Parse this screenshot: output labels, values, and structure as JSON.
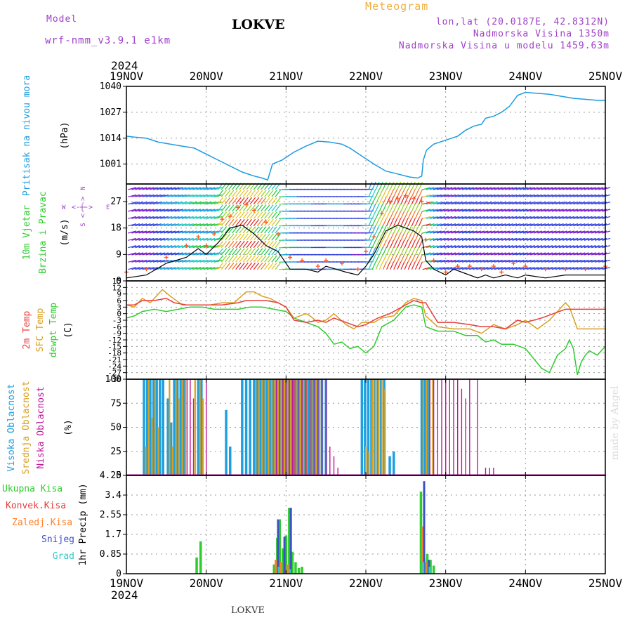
{
  "header": {
    "model_label": "Model",
    "model_name": "wrf-nmm_v3.9.1 e1km",
    "station": "LOKVE",
    "title": "Meteogram",
    "coords": "lon,lat (20.0187E, 42.8312N)",
    "altitude": "Nadmorska Visina 1350m",
    "model_altitude": "Nadmorska Visina u modelu 1459.63m",
    "footer_station": "LOKVE",
    "credit": "made by Angel"
  },
  "colors": {
    "pressure": "#1e9be0",
    "wind_speed_mean": "#000000",
    "wind_gust": "#ff5a1e",
    "temp_2m": "#e83c3c",
    "temp_sfc": "#d9a020",
    "dewpoint": "#2ecc2e",
    "cloud_high": "#1ea0e0",
    "cloud_mid": "#d9a020",
    "cloud_low": "#c0179a",
    "precip_total": "#2ecc2e",
    "precip_conv": "#e83c3c",
    "precip_freezing": "#ff7f27",
    "snow": "#3c50c8",
    "hail": "#2ec8c8"
  },
  "chart_data": [
    {
      "type": "line",
      "panel": "pressure",
      "ylabel_lines": [
        "Pritisak na nivou mora",
        "(hPa)"
      ],
      "xlabel_top": [
        "2024",
        "19NOV",
        "20NOV",
        "21NOV",
        "22NOV",
        "23NOV",
        "24NOV",
        "25NOV"
      ],
      "x_unit": "days since 19NOV 00h",
      "ylim": [
        991,
        1040
      ],
      "yticks": [
        1001,
        1014,
        1027,
        1040
      ],
      "grid": true,
      "series": [
        {
          "name": "Pritisak na nivou mora",
          "x": [
            0,
            0.1,
            0.25,
            0.4,
            0.55,
            0.7,
            0.85,
            1.0,
            1.15,
            1.3,
            1.45,
            1.6,
            1.7,
            1.77,
            1.83,
            1.95,
            2.1,
            2.25,
            2.4,
            2.55,
            2.7,
            2.8,
            2.95,
            3.1,
            3.25,
            3.4,
            3.55,
            3.65,
            3.7,
            3.72,
            3.76,
            3.85,
            4.0,
            4.15,
            4.25,
            4.35,
            4.45,
            4.5,
            4.6,
            4.7,
            4.8,
            4.9,
            5.0,
            5.3,
            5.6,
            5.9,
            6.0
          ],
          "values": [
            1015,
            1014.5,
            1014,
            1012,
            1011,
            1010,
            1009,
            1006,
            1003,
            1000,
            997,
            995,
            994,
            993,
            1001,
            1003,
            1007,
            1010,
            1012.5,
            1012,
            1011,
            1009,
            1005,
            1001,
            997.5,
            996,
            994.5,
            994,
            995,
            1003,
            1008,
            1011,
            1013,
            1015,
            1018,
            1020,
            1021,
            1024,
            1025,
            1027,
            1030,
            1035.5,
            1037,
            1036,
            1034,
            1033,
            1033
          ]
        }
      ]
    },
    {
      "type": "line",
      "panel": "wind",
      "ylabel_lines": [
        "10m Vjetar",
        "Brzina i Pravac",
        "(m/s)"
      ],
      "compass": [
        "W",
        "E",
        "S",
        "N"
      ],
      "ylim": [
        0,
        33
      ],
      "yticks": [
        0,
        9,
        18,
        27
      ],
      "grid": true,
      "series": [
        {
          "name": "Srednja brzina",
          "x": [
            0,
            0.25,
            0.5,
            0.75,
            0.9,
            1.0,
            1.15,
            1.3,
            1.45,
            1.6,
            1.75,
            1.9,
            2.05,
            2.25,
            2.4,
            2.5,
            2.75,
            2.9,
            3.0,
            3.1,
            3.25,
            3.4,
            3.5,
            3.6,
            3.7,
            3.75,
            3.85,
            4.0,
            4.1,
            4.2,
            4.4,
            4.5,
            4.6,
            4.75,
            4.9,
            5.0,
            5.25,
            5.5,
            5.75,
            6.0
          ],
          "values": [
            1,
            2,
            6,
            8,
            11,
            9,
            13,
            18,
            19,
            16,
            12,
            10,
            4,
            4,
            3,
            5,
            3,
            2,
            5,
            9,
            17,
            19,
            18,
            17,
            15,
            7,
            4,
            2,
            4,
            3,
            1,
            2,
            1,
            2,
            1,
            2,
            1,
            2,
            2,
            2
          ]
        },
        {
          "name": "Udari",
          "x": [
            0,
            0.25,
            0.5,
            0.75,
            0.9,
            1.0,
            1.1,
            1.2,
            1.3,
            1.4,
            1.5,
            1.6,
            1.75,
            1.9,
            2.05,
            2.2,
            2.4,
            2.5,
            2.7,
            2.9,
            3.0,
            3.1,
            3.2,
            3.3,
            3.4,
            3.5,
            3.6,
            3.7,
            3.75,
            3.85,
            4.0,
            4.15,
            4.3,
            4.45,
            4.6,
            4.7,
            4.85,
            5.0,
            5.25,
            5.5,
            5.75,
            6.0
          ],
          "values": [
            3,
            4,
            8,
            12,
            15,
            12,
            16,
            21,
            22,
            25,
            26,
            24,
            20,
            16,
            8,
            7,
            5,
            7,
            6,
            4,
            10,
            15,
            23,
            27,
            28,
            29,
            28,
            27,
            14,
            7,
            3,
            5,
            5,
            4,
            5,
            3,
            6,
            5,
            4,
            4,
            4,
            5
          ]
        }
      ]
    },
    {
      "type": "line",
      "panel": "temperature",
      "ylabel_lines": [
        "2m Temp",
        "SFC Temp",
        "dewpt Temp",
        "(C)"
      ],
      "ylim": [
        -30,
        15
      ],
      "yticks": [
        -30,
        -27,
        -24,
        -21,
        -18,
        -15,
        -12,
        -9,
        -6,
        -3,
        0,
        3,
        6,
        9,
        12,
        15
      ],
      "grid": true,
      "series": [
        {
          "name": "2m Temp",
          "x": [
            0,
            0.1,
            0.2,
            0.35,
            0.5,
            0.6,
            0.75,
            0.9,
            1.0,
            1.2,
            1.4,
            1.5,
            1.6,
            1.75,
            1.9,
            2.0,
            2.1,
            2.25,
            2.4,
            2.5,
            2.6,
            2.75,
            2.9,
            3.0,
            3.15,
            3.3,
            3.5,
            3.6,
            3.7,
            3.75,
            3.9,
            4.1,
            4.3,
            4.45,
            4.6,
            4.75,
            4.9,
            5.0,
            5.2,
            5.35,
            5.5,
            5.7,
            6.0
          ],
          "values": [
            4,
            4,
            6,
            6,
            7,
            5,
            4,
            4,
            4,
            4,
            5,
            6,
            6,
            6,
            5,
            3,
            -3,
            -4,
            -3,
            -4,
            -2,
            -4,
            -6,
            -5,
            -2,
            0,
            4,
            6,
            5,
            5,
            -4,
            -4,
            -5,
            -6,
            -6,
            -7,
            -3,
            -4,
            -2,
            0,
            2,
            2,
            2
          ]
        },
        {
          "name": "SFC Temp",
          "x": [
            0,
            0.1,
            0.2,
            0.3,
            0.45,
            0.55,
            0.7,
            0.9,
            1.05,
            1.2,
            1.35,
            1.5,
            1.6,
            1.7,
            1.8,
            1.9,
            2.0,
            2.1,
            2.25,
            2.3,
            2.4,
            2.5,
            2.6,
            2.75,
            2.85,
            2.95,
            3.1,
            3.2,
            3.35,
            3.5,
            3.6,
            3.7,
            3.75,
            3.9,
            4.1,
            4.3,
            4.45,
            4.6,
            4.75,
            4.9,
            5.0,
            5.15,
            5.3,
            5.5,
            5.55,
            5.65,
            5.8,
            6.0
          ],
          "values": [
            4,
            3,
            7,
            5,
            11,
            8,
            4,
            4,
            4,
            5,
            5,
            10,
            10,
            8,
            7,
            5,
            3,
            -2,
            0,
            -1,
            -4,
            -3,
            0,
            -5,
            -7,
            -4,
            -4,
            -2,
            -1,
            5,
            7,
            6,
            -1,
            -6,
            -7,
            -7,
            -9,
            -5,
            -7,
            -5,
            -3,
            -7,
            -3,
            5,
            3,
            -7,
            -7,
            -7
          ]
        },
        {
          "name": "dewpt Temp",
          "x": [
            0,
            0.1,
            0.2,
            0.35,
            0.5,
            0.65,
            0.8,
            0.95,
            1.1,
            1.25,
            1.4,
            1.55,
            1.7,
            1.85,
            2.0,
            2.1,
            2.25,
            2.4,
            2.5,
            2.6,
            2.7,
            2.8,
            2.9,
            3.0,
            3.1,
            3.2,
            3.35,
            3.5,
            3.6,
            3.7,
            3.75,
            3.9,
            4.1,
            4.25,
            4.4,
            4.5,
            4.6,
            4.7,
            4.85,
            5.0,
            5.2,
            5.3,
            5.4,
            5.5,
            5.55,
            5.6,
            5.65,
            5.7,
            5.75,
            5.8,
            5.9,
            6.0
          ],
          "values": [
            -2,
            -1,
            1,
            2,
            1,
            2,
            3,
            3,
            2,
            2,
            2,
            3,
            3,
            2,
            1,
            -2,
            -4,
            -6,
            -9,
            -14,
            -13,
            -16,
            -15,
            -18,
            -15,
            -6,
            -3,
            3,
            4,
            3,
            -6,
            -8,
            -8,
            -10,
            -10,
            -13,
            -12,
            -14,
            -14,
            -16,
            -25,
            -27,
            -19,
            -16,
            -12,
            -16,
            -28,
            -22,
            -19,
            -17,
            -19,
            -15
          ]
        }
      ]
    },
    {
      "type": "bar",
      "panel": "clouds",
      "ylabel_lines": [
        "Visoka Oblacnost",
        "Srednja Oblacnost",
        "Niska Oblacnost",
        "(%)"
      ],
      "ylim": [
        0,
        100
      ],
      "yticks": [
        0,
        25,
        50,
        75,
        100
      ],
      "grid": true,
      "series": [
        {
          "name": "Visoka Oblacnost",
          "x": [
            0.22,
            0.26,
            0.3,
            0.34,
            0.38,
            0.42,
            0.46,
            0.52,
            0.56,
            0.6,
            0.64,
            0.68,
            0.72,
            0.9,
            0.94,
            1.25,
            1.3,
            1.45,
            1.5,
            1.55,
            1.6,
            1.64,
            1.68,
            1.72,
            1.76,
            1.8,
            1.84,
            1.88,
            1.92,
            1.96,
            2.0,
            2.04,
            2.08,
            2.12,
            2.16,
            2.2,
            2.24,
            2.28,
            2.32,
            2.36,
            2.4,
            2.45,
            2.5,
            2.95,
            2.99,
            3.03,
            3.07,
            3.11,
            3.15,
            3.19,
            3.23,
            3.3,
            3.35,
            3.7,
            3.74,
            3.78
          ],
          "values": [
            100,
            100,
            100,
            100,
            100,
            100,
            100,
            80,
            55,
            100,
            100,
            100,
            100,
            100,
            100,
            68,
            30,
            100,
            100,
            100,
            100,
            100,
            100,
            100,
            100,
            100,
            100,
            100,
            100,
            100,
            100,
            100,
            100,
            100,
            100,
            100,
            100,
            100,
            100,
            100,
            100,
            100,
            100,
            100,
            100,
            100,
            100,
            100,
            100,
            100,
            100,
            20,
            25,
            100,
            100,
            100
          ]
        },
        {
          "name": "Srednja Oblacnost",
          "x": [
            0.24,
            0.28,
            0.32,
            0.36,
            0.4,
            0.54,
            0.58,
            0.62,
            0.66,
            0.7,
            0.74,
            0.86,
            0.92,
            0.96,
            1.62,
            1.66,
            1.7,
            1.74,
            1.78,
            1.82,
            1.86,
            1.9,
            1.94,
            1.98,
            2.02,
            2.06,
            2.1,
            2.14,
            2.18,
            2.22,
            2.26,
            2.3,
            2.34,
            2.38,
            2.42,
            3.0,
            3.04,
            3.08,
            3.12,
            3.16,
            3.2,
            3.24,
            3.72,
            3.76,
            3.8,
            3.84
          ],
          "values": [
            30,
            100,
            60,
            100,
            50,
            100,
            30,
            100,
            80,
            100,
            100,
            100,
            100,
            80,
            100,
            100,
            100,
            100,
            100,
            100,
            100,
            100,
            100,
            100,
            100,
            100,
            100,
            100,
            100,
            100,
            100,
            100,
            100,
            100,
            100,
            30,
            25,
            100,
            100,
            100,
            100,
            90,
            100,
            100,
            100,
            100
          ]
        },
        {
          "name": "Niska Oblacnost",
          "x": [
            0.76,
            0.8,
            0.84,
            1.0,
            1.88,
            1.92,
            1.96,
            2.0,
            2.04,
            2.08,
            2.1,
            2.15,
            2.2,
            2.25,
            2.3,
            2.35,
            2.4,
            2.45,
            2.5,
            2.55,
            2.6,
            2.65,
            3.8,
            3.85,
            3.9,
            3.95,
            4.0,
            4.05,
            4.1,
            4.15,
            4.2,
            4.25,
            4.3,
            4.4,
            4.5,
            4.55,
            4.6
          ],
          "values": [
            100,
            100,
            80,
            100,
            100,
            100,
            100,
            100,
            100,
            100,
            100,
            100,
            100,
            100,
            100,
            100,
            100,
            100,
            100,
            30,
            20,
            8,
            100,
            100,
            100,
            100,
            100,
            100,
            100,
            100,
            90,
            80,
            100,
            100,
            8,
            8,
            8
          ]
        }
      ]
    },
    {
      "type": "bar",
      "panel": "precip",
      "ylabel_lines": [
        "1hr Precip (mm)"
      ],
      "legend": [
        "Ukupna Kisa",
        "Konvek.Kisa",
        "Zaledj.Kisa",
        "Snijeg",
        "Grad"
      ],
      "xlabel_bottom": [
        "19NOV",
        "20NOV",
        "21NOV",
        "22NOV",
        "23NOV",
        "24NOV",
        "25NOV",
        "2024"
      ],
      "ylim": [
        0,
        4.25
      ],
      "yticks": [
        0,
        0.85,
        1.7,
        2.55,
        3.4,
        4.25
      ],
      "grid": true,
      "series": [
        {
          "name": "Ukupna Kisa",
          "x": [
            0.88,
            0.93,
            1.85,
            1.89,
            1.92,
            1.96,
            2.0,
            2.04,
            2.08,
            2.12,
            2.16,
            2.2,
            3.69,
            3.73,
            3.77,
            3.81,
            3.85
          ],
          "values": [
            0.7,
            1.4,
            0.4,
            1.55,
            2.35,
            1.1,
            1.65,
            2.85,
            0.95,
            0.5,
            0.25,
            0.3,
            3.55,
            0.7,
            0.85,
            0.6,
            0.35
          ]
        },
        {
          "name": "Zaledj.Kisa",
          "x": [
            1.87,
            1.94,
            2.02,
            3.71,
            3.75
          ],
          "values": [
            0.6,
            0.5,
            0.4,
            2.05,
            0.5
          ]
        },
        {
          "name": "Snijeg",
          "x": [
            1.9,
            1.98,
            2.06,
            3.73,
            3.79
          ],
          "values": [
            2.35,
            1.6,
            2.85,
            4.0,
            0.6
          ]
        },
        {
          "name": "Grad",
          "x": [
            1.91,
            2.05,
            3.72,
            3.8
          ],
          "values": [
            0.3,
            0.2,
            0.5,
            0.3
          ]
        }
      ]
    }
  ]
}
